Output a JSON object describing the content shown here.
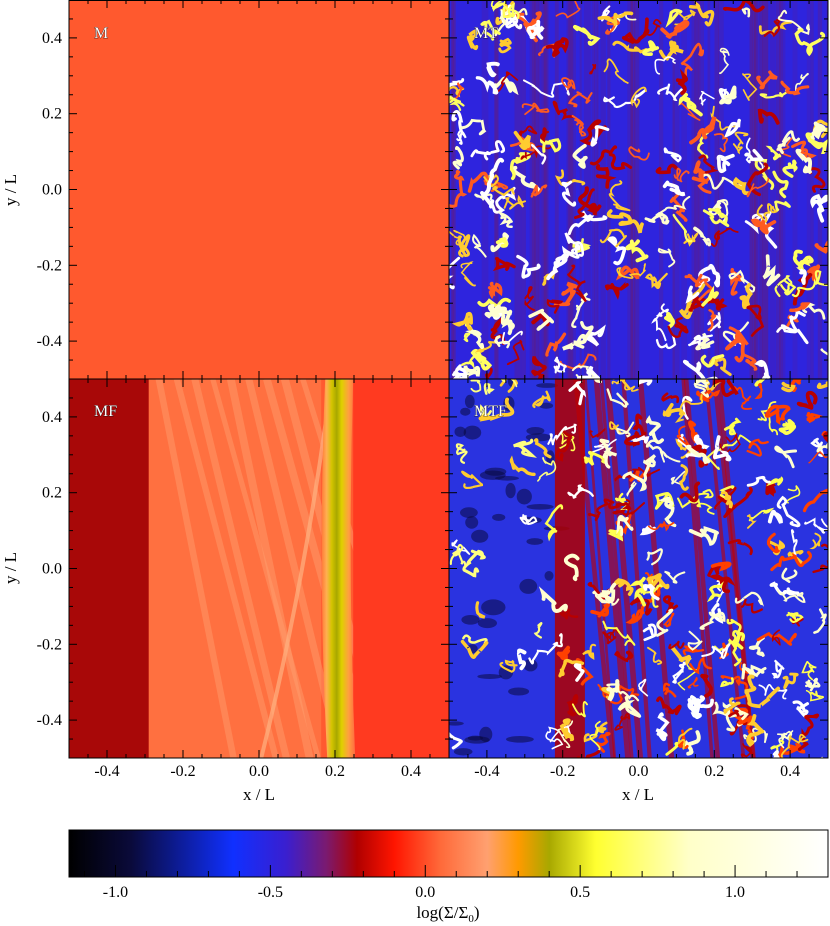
{
  "chart_data": {
    "type": "heatmap",
    "panels": [
      {
        "label": "M",
        "pattern": "uniform",
        "mean_value": 0.02
      },
      {
        "label": "MT",
        "pattern": "turbulent-filaments",
        "background_value": -0.5
      },
      {
        "label": "MF",
        "pattern": "front",
        "front_x": 0.19,
        "left_edge_x": -0.29
      },
      {
        "label": "MTF",
        "pattern": "turbulent-front",
        "front_x": -0.21
      }
    ],
    "xlabel": "x / L",
    "ylabel": "y / L",
    "xlim": [
      -0.5,
      0.5
    ],
    "ylim": [
      -0.5,
      0.5
    ],
    "x_ticks": [
      "-0.4",
      "-0.2",
      "0.0",
      "0.2",
      "0.4"
    ],
    "y_ticks": [
      "0.4",
      "0.2",
      "0.0",
      "-0.2",
      "-0.4"
    ],
    "colorbar": {
      "label": "log(Σ/Σ",
      "label_sub": "0",
      "label_end": ")",
      "range": [
        -1.15,
        1.3
      ],
      "ticks": [
        "-1.0",
        "-0.5",
        "0.0",
        "0.5",
        "1.0"
      ],
      "colormap": [
        {
          "v": -1.15,
          "c": "#000000"
        },
        {
          "v": -0.95,
          "c": "#0a0a3a"
        },
        {
          "v": -0.62,
          "c": "#1030ff"
        },
        {
          "v": -0.45,
          "c": "#3a1fd0"
        },
        {
          "v": -0.32,
          "c": "#7a1a70"
        },
        {
          "v": -0.22,
          "c": "#b00000"
        },
        {
          "v": -0.1,
          "c": "#ff1500"
        },
        {
          "v": 0.05,
          "c": "#ff6a3a"
        },
        {
          "v": 0.2,
          "c": "#ffa070"
        },
        {
          "v": 0.3,
          "c": "#ff9a00"
        },
        {
          "v": 0.4,
          "c": "#a8a800"
        },
        {
          "v": 0.55,
          "c": "#ffff30"
        },
        {
          "v": 0.85,
          "c": "#ffffc8"
        },
        {
          "v": 1.3,
          "c": "#ffffff"
        }
      ]
    }
  }
}
